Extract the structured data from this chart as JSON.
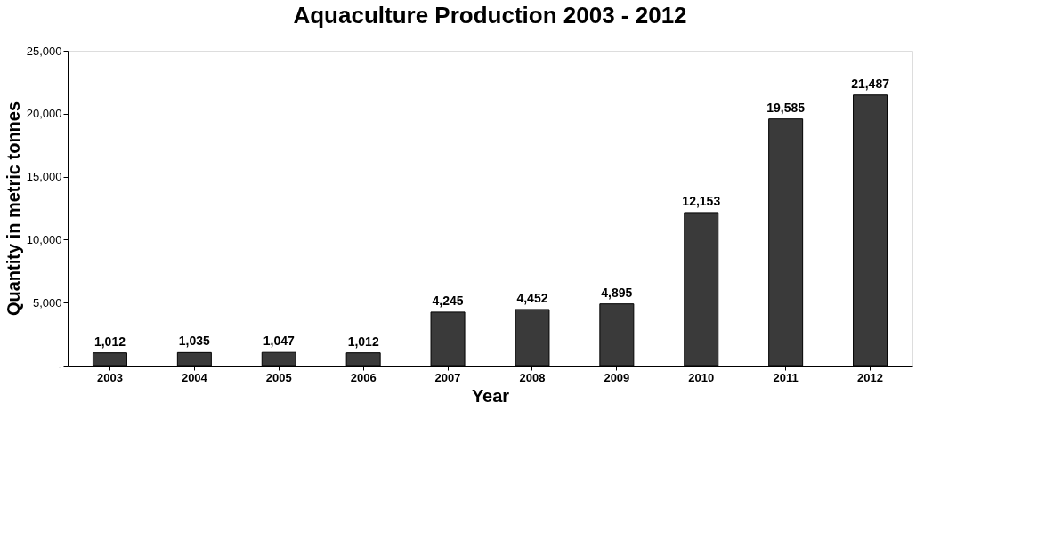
{
  "chart_data": {
    "type": "bar",
    "title": "Aquaculture Production 2003 - 2012",
    "xlabel": "Year",
    "ylabel": "Quantity in metric tonnes",
    "categories": [
      "2003",
      "2004",
      "2005",
      "2006",
      "2007",
      "2008",
      "2009",
      "2010",
      "2011",
      "2012"
    ],
    "values": [
      1012,
      1035,
      1047,
      1012,
      4245,
      4452,
      4895,
      12153,
      19585,
      21487
    ],
    "value_labels": [
      "1,012",
      "1,035",
      "1,047",
      "1,012",
      "4,245",
      "4,452",
      "4,895",
      "12,153",
      "19,585",
      "21,487"
    ],
    "color": "#3a3a3a",
    "ylim": [
      0,
      25000
    ],
    "yticks": [
      {
        "value": 0,
        "label": "-"
      },
      {
        "value": 5000,
        "label": "5,000"
      },
      {
        "value": 10000,
        "label": "10,000"
      },
      {
        "value": 15000,
        "label": "15,000"
      },
      {
        "value": 20000,
        "label": "20,000"
      },
      {
        "value": 25000,
        "label": "25,000"
      }
    ],
    "grid": false
  }
}
